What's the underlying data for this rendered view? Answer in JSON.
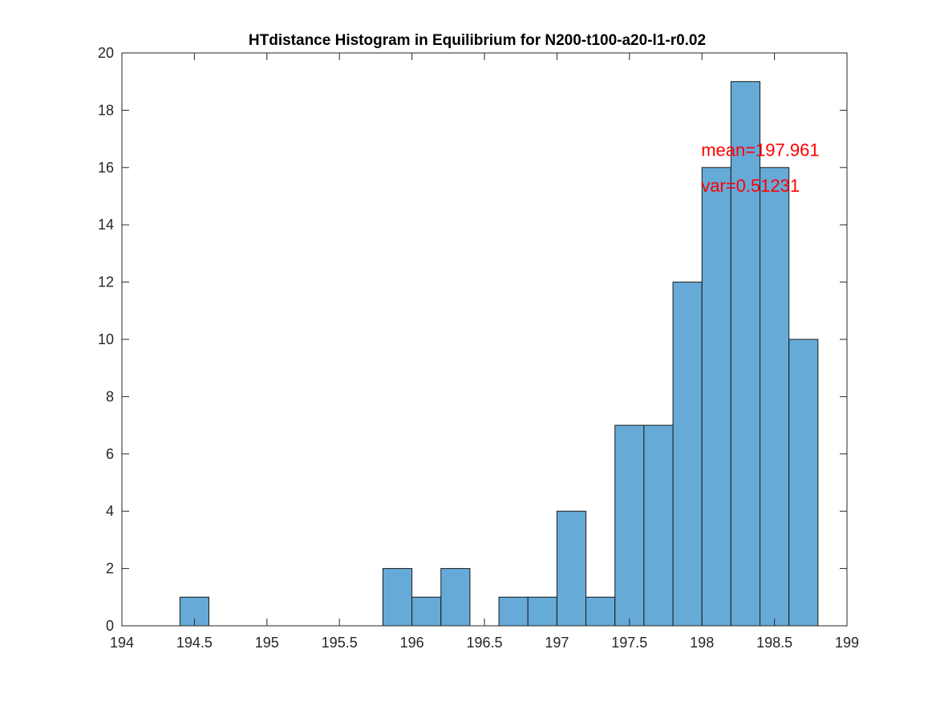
{
  "chart_data": {
    "type": "bar",
    "title": "HTdistance Histogram in Equilibrium for N200-t100-a20-l1-r0.02",
    "xlabel": "",
    "ylabel": "",
    "xlim": [
      194,
      199
    ],
    "ylim": [
      0,
      20
    ],
    "grid": false,
    "legend": "none",
    "bin_width": 0.2,
    "bins": [
      {
        "x0": 194.4,
        "x1": 194.6,
        "count": 1
      },
      {
        "x0": 195.8,
        "x1": 196.0,
        "count": 2
      },
      {
        "x0": 196.0,
        "x1": 196.2,
        "count": 1
      },
      {
        "x0": 196.2,
        "x1": 196.4,
        "count": 2
      },
      {
        "x0": 196.6,
        "x1": 196.8,
        "count": 1
      },
      {
        "x0": 196.8,
        "x1": 197.0,
        "count": 1
      },
      {
        "x0": 197.0,
        "x1": 197.2,
        "count": 4
      },
      {
        "x0": 197.2,
        "x1": 197.4,
        "count": 1
      },
      {
        "x0": 197.4,
        "x1": 197.6,
        "count": 7
      },
      {
        "x0": 197.6,
        "x1": 197.8,
        "count": 7
      },
      {
        "x0": 197.8,
        "x1": 198.0,
        "count": 12
      },
      {
        "x0": 198.0,
        "x1": 198.2,
        "count": 16
      },
      {
        "x0": 198.2,
        "x1": 198.4,
        "count": 19
      },
      {
        "x0": 198.4,
        "x1": 198.6,
        "count": 16
      },
      {
        "x0": 198.6,
        "x1": 198.8,
        "count": 10
      }
    ],
    "x_ticks": [
      "194",
      "194.5",
      "195",
      "195.5",
      "196",
      "196.5",
      "197",
      "197.5",
      "198",
      "198.5",
      "199"
    ],
    "y_ticks": [
      "0",
      "2",
      "4",
      "6",
      "8",
      "10",
      "12",
      "14",
      "16",
      "18",
      "20"
    ],
    "annotations": [
      {
        "text": "mean=197.961",
        "x": 198.0,
        "y": 16.4
      },
      {
        "text": "var=0.51231",
        "x": 198.0,
        "y": 15.15
      }
    ],
    "colors": {
      "bar_fill": "#66aad8",
      "bar_edge": "#1a1a1a",
      "axis": "#262626",
      "annotation": "#ff0000"
    }
  }
}
